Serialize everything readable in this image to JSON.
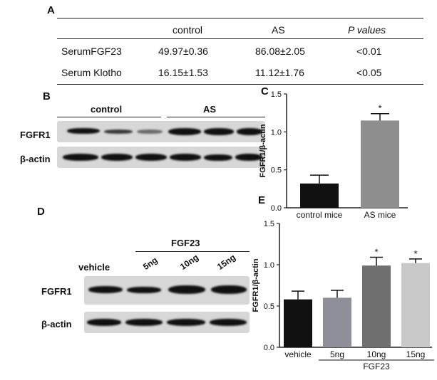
{
  "panel_a": {
    "letter": "A",
    "headers": [
      "",
      "control",
      "AS",
      "P values"
    ],
    "rows": [
      [
        "SerumFGF23",
        "49.97±0.36",
        "86.08±2.05",
        "<0.01"
      ],
      [
        "Serum Klotho",
        "16.15±1.53",
        "11.12±1.76",
        "<0.05"
      ]
    ]
  },
  "panel_b": {
    "letter": "B",
    "groups": [
      "control",
      "AS"
    ],
    "row_labels": [
      "FGFR1",
      "β-actin"
    ]
  },
  "panel_d": {
    "letter": "D",
    "group_label": "FGF23",
    "lanes": [
      "vehicle",
      "5ng",
      "10ng",
      "15ng"
    ],
    "row_labels": [
      "FGFR1",
      "β-actin"
    ]
  },
  "chart_data": [
    {
      "panel": "C",
      "type": "bar",
      "categories": [
        "control mice",
        "AS mice"
      ],
      "values": [
        0.32,
        1.15
      ],
      "errors": [
        0.11,
        0.09
      ],
      "significance": [
        "",
        "*"
      ],
      "ylabel": "FGFR1/β-actin",
      "ylim": [
        0,
        1.5
      ],
      "yticks": [
        "0.0",
        "0.5",
        "1.0",
        "1.5"
      ],
      "colors": [
        "#111111",
        "#8e8e8e"
      ]
    },
    {
      "panel": "E",
      "type": "bar",
      "categories": [
        "vehicle",
        "5ng",
        "10ng",
        "15ng"
      ],
      "values": [
        0.58,
        0.6,
        0.99,
        1.02
      ],
      "errors": [
        0.1,
        0.09,
        0.1,
        0.05
      ],
      "significance": [
        "",
        "",
        "*",
        "*"
      ],
      "ylabel": "FGFR1/β-actin",
      "group_label": "FGF23",
      "ylim": [
        0,
        1.5
      ],
      "yticks": [
        "0.0",
        "0.5",
        "1.0",
        "1.5"
      ],
      "colors": [
        "#111111",
        "#8f8f9a",
        "#6f6f6f",
        "#c8c8c8"
      ]
    }
  ]
}
